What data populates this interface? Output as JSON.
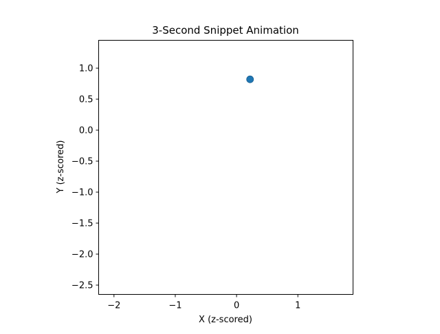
{
  "chart_data": {
    "type": "scatter",
    "title": "3-Second Snippet Animation",
    "xlabel": "X (z-scored)",
    "ylabel": "Y (z-scored)",
    "xlim": [
      -2.25,
      1.9
    ],
    "ylim": [
      -2.65,
      1.45
    ],
    "xticks": [
      -2,
      -1,
      0,
      1
    ],
    "xtick_labels": [
      "−2",
      "−1",
      "0",
      "1"
    ],
    "yticks": [
      1.0,
      0.5,
      0.0,
      -0.5,
      -1.0,
      -1.5,
      -2.0,
      -2.5
    ],
    "ytick_labels": [
      "1.0",
      "0.5",
      "0.0",
      "−0.5",
      "−1.0",
      "−1.5",
      "−2.0",
      "−2.5"
    ],
    "grid": false,
    "series": [
      {
        "points": [
          {
            "x": 0.22,
            "y": 0.82
          }
        ],
        "color": "#1f77b4"
      }
    ]
  }
}
